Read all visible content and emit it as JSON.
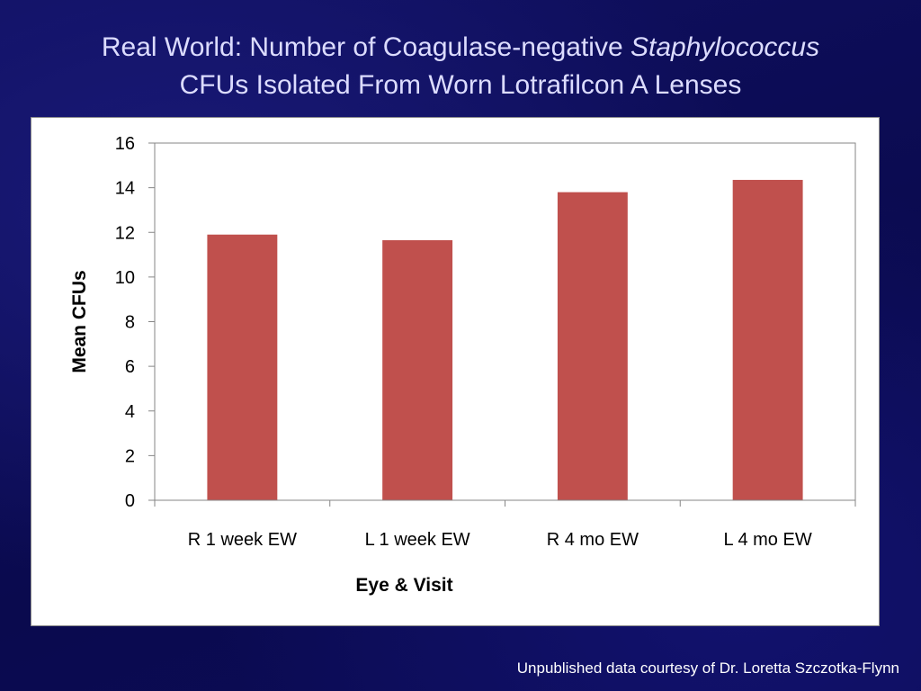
{
  "slide": {
    "title_line1_prefix": "Real World: Number of Coagulase-negative ",
    "title_line1_italic": "Staphylococcus",
    "title_line2": "CFUs Isolated From Worn Lotrafilcon A Lenses",
    "footer": "Unpublished data courtesy of Dr. Loretta Szczotka-Flynn",
    "background_color": "#0d0d5a",
    "title_color": "#dcdcff"
  },
  "chart_data": {
    "type": "bar",
    "title": "",
    "xlabel": "Eye & Visit",
    "ylabel": "Mean CFUs",
    "categories": [
      "R 1 week EW",
      "L 1 week EW",
      "R 4 mo EW",
      "L 4 mo EW"
    ],
    "values": [
      11.9,
      11.65,
      13.8,
      14.35
    ],
    "ylim": [
      0,
      16
    ],
    "yticks": [
      0,
      2,
      4,
      6,
      8,
      10,
      12,
      14,
      16
    ],
    "grid": false,
    "legend": "none",
    "bar_color": "#c0504d"
  }
}
